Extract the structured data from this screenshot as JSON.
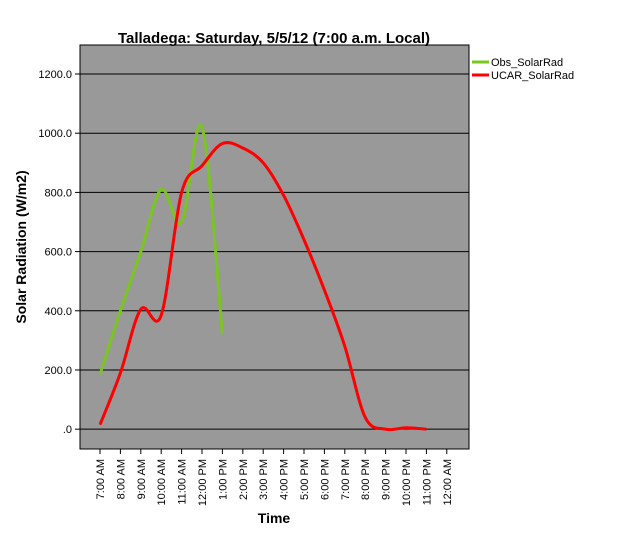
{
  "chart_data": {
    "type": "line",
    "title": "Talladega: Saturday, 5/5/12 (7:00 a.m. Local)",
    "x_label": "Time",
    "y_label": "Solar Radiation (W/m2)",
    "categories": [
      "7:00 AM",
      "8:00 AM",
      "9:00 AM",
      "10:00 AM",
      "11:00 AM",
      "12:00 PM",
      "1:00 PM",
      "2:00 PM",
      "3:00 PM",
      "4:00 PM",
      "5:00 PM",
      "6:00 PM",
      "7:00 PM",
      "8:00 PM",
      "9:00 PM",
      "10:00 PM",
      "11:00 PM",
      "12:00 AM"
    ],
    "series": [
      {
        "name": "Obs_SolarRad",
        "color": "#7ac51f",
        "values": [
          185,
          400,
          600,
          810,
          700,
          1020,
          320,
          null,
          null,
          null,
          null,
          null,
          null,
          null,
          null,
          null,
          null,
          null
        ]
      },
      {
        "name": "UCAR_SolarRad",
        "color": "#ff0000",
        "values": [
          15,
          190,
          405,
          385,
          800,
          890,
          965,
          950,
          900,
          790,
          640,
          470,
          280,
          40,
          0,
          5,
          0,
          null
        ]
      }
    ],
    "ylim": [
      -67,
      1298
    ],
    "yticks": [
      {
        "value": 0,
        "label": ".0"
      },
      {
        "value": 200,
        "label": "200.0"
      },
      {
        "value": 400,
        "label": "400.0"
      },
      {
        "value": 600,
        "label": "600.0"
      },
      {
        "value": 800,
        "label": "800.0"
      },
      {
        "value": 1000,
        "label": "1000.0"
      },
      {
        "value": 1200,
        "label": "1200.0"
      }
    ],
    "grid": true,
    "smooth": true,
    "plot_background": "#999999",
    "legend_position": "top-right-outside"
  }
}
